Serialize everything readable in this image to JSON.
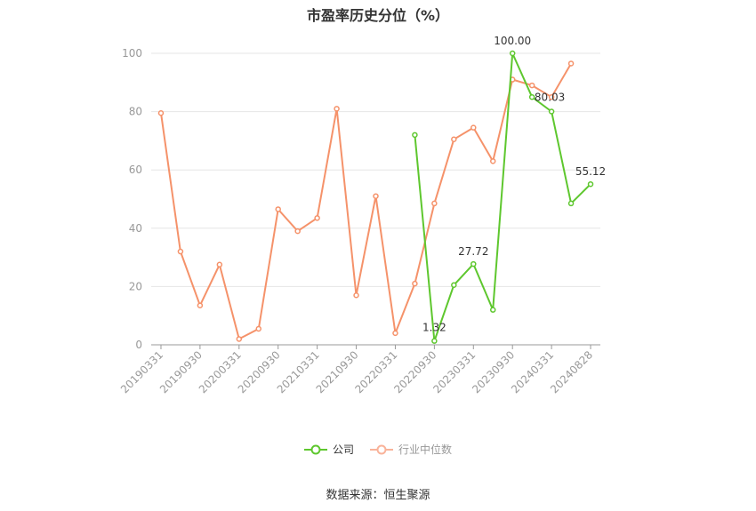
{
  "chart_data": {
    "type": "line",
    "title": "市盈率历史分位（%）",
    "ylim": [
      0,
      100
    ],
    "yticks": [
      0,
      20,
      40,
      60,
      80,
      100
    ],
    "grid": true,
    "legend_position": "bottom",
    "x": [
      "20190331",
      "20190630",
      "20190930",
      "20191231",
      "20200331",
      "20200630",
      "20200930",
      "20201231",
      "20210331",
      "20210630",
      "20210930",
      "20211231",
      "20220331",
      "20220630",
      "20220930",
      "20221231",
      "20230331",
      "20230630",
      "20230930",
      "20231231",
      "20240331",
      "20240630",
      "20240828"
    ],
    "xtick_labels": [
      "20190331",
      "20190930",
      "20200331",
      "20200930",
      "20210331",
      "20210930",
      "20220331",
      "20220930",
      "20230331",
      "20230930",
      "20240331",
      "20240828"
    ],
    "series": [
      {
        "name": "公司",
        "color": "#5ec72e",
        "values": [
          null,
          null,
          null,
          null,
          null,
          null,
          null,
          null,
          null,
          null,
          null,
          null,
          null,
          72,
          1.32,
          20.5,
          27.72,
          12,
          100.0,
          85,
          80.03,
          48.5,
          55.12
        ],
        "data_labels": [
          {
            "x": "20220930",
            "text": "1.32"
          },
          {
            "x": "20230331",
            "text": "27.72"
          },
          {
            "x": "20230930",
            "text": "100.00"
          },
          {
            "x": "20240331",
            "text": "80.03"
          },
          {
            "x": "20240828",
            "text": "55.12"
          }
        ]
      },
      {
        "name": "行业中位数",
        "color": "#f5926a",
        "values": [
          79.5,
          32,
          13.5,
          27.5,
          2,
          5.5,
          46.5,
          39,
          43.5,
          81,
          17,
          51,
          4,
          21,
          48.5,
          70.5,
          74.5,
          63,
          91,
          89,
          85,
          96.5,
          null
        ]
      }
    ]
  },
  "source_text": "数据来源：恒生聚源"
}
